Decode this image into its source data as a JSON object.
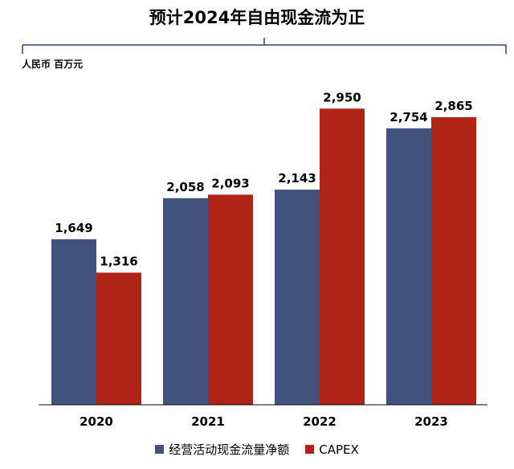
{
  "title": "预计2024年自由现金流为正",
  "unit": "人民币 百万元",
  "colors": {
    "series0": "#40527d",
    "series1": "#b02417",
    "axis": "#2f3f7a"
  },
  "chart_data": {
    "type": "bar",
    "title": "预计2024年自由现金流为正",
    "ylabel": "人民币 百万元",
    "categories": [
      "2020",
      "2021",
      "2022",
      "2023"
    ],
    "series": [
      {
        "name": "经营活动现金流量净额",
        "values": [
          1649,
          2058,
          2143,
          2754
        ],
        "labels": [
          "1,649",
          "2,058",
          "2,143",
          "2,754"
        ]
      },
      {
        "name": "CAPEX",
        "values": [
          1316,
          2093,
          2950,
          2865
        ],
        "labels": [
          "1,316",
          "2,093",
          "2,950",
          "2,865"
        ]
      }
    ],
    "ylim": [
      0,
      3200
    ],
    "grid": false,
    "legend": "bottom"
  }
}
